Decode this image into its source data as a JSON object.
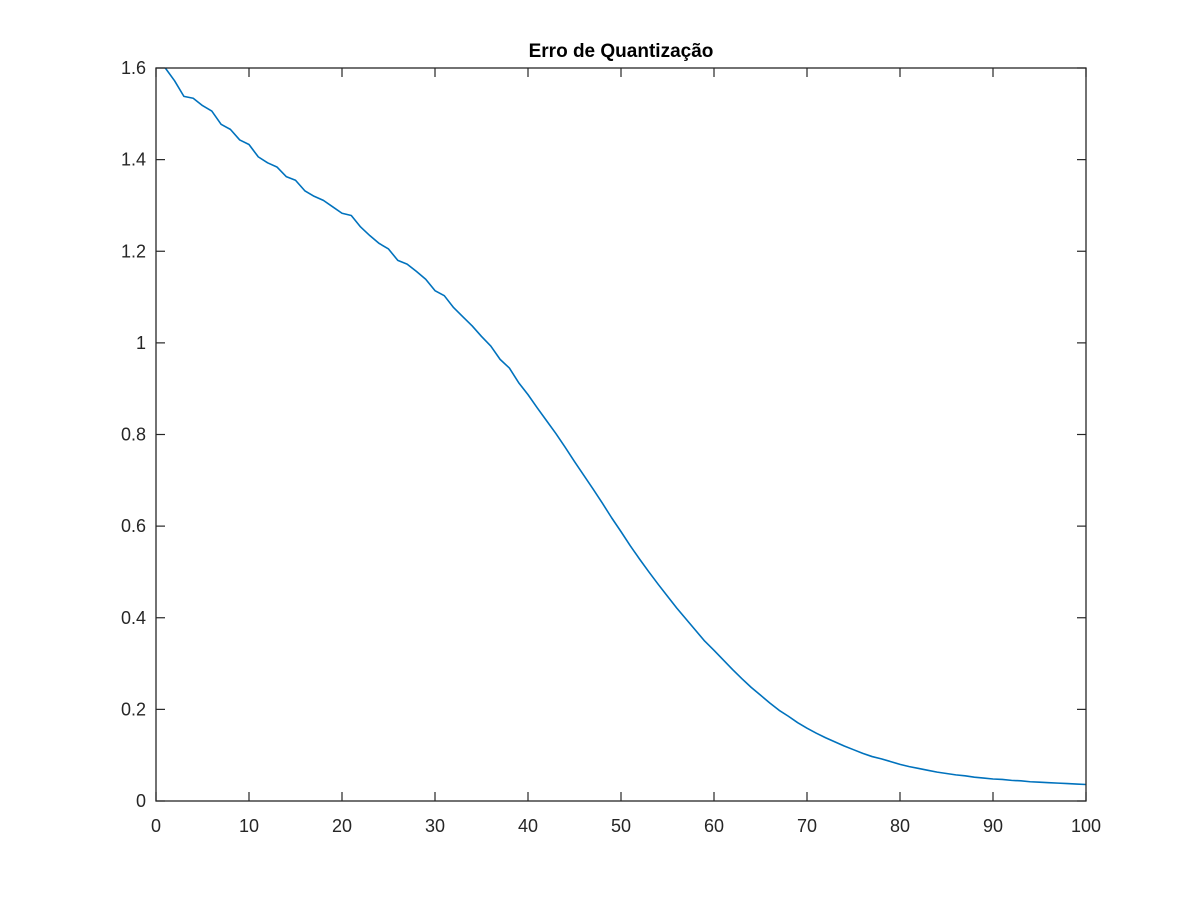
{
  "chart_data": {
    "type": "line",
    "title": "Erro de Quantização",
    "xlabel": "",
    "ylabel": "",
    "xlim": [
      0,
      100
    ],
    "ylim": [
      0,
      1.6
    ],
    "xticks": [
      0,
      10,
      20,
      30,
      40,
      50,
      60,
      70,
      80,
      90,
      100
    ],
    "yticks": [
      0,
      0.2,
      0.4,
      0.6,
      0.8,
      1,
      1.2,
      1.4,
      1.6
    ],
    "xtick_labels": [
      "0",
      "10",
      "20",
      "30",
      "40",
      "50",
      "60",
      "70",
      "80",
      "90",
      "100"
    ],
    "ytick_labels": [
      "0",
      "0.2",
      "0.4",
      "0.6",
      "0.8",
      "1",
      "1.2",
      "1.4",
      "1.6"
    ],
    "grid": false,
    "box": true,
    "series": [
      {
        "color": "#0072bd",
        "x": [
          1,
          2,
          3,
          4,
          5,
          6,
          7,
          8,
          9,
          10,
          11,
          12,
          13,
          14,
          15,
          16,
          17,
          18,
          19,
          20,
          21,
          22,
          23,
          24,
          25,
          26,
          27,
          28,
          29,
          30,
          31,
          32,
          33,
          34,
          35,
          36,
          37,
          38,
          39,
          40,
          41,
          42,
          43,
          44,
          45,
          46,
          47,
          48,
          49,
          50,
          51,
          52,
          53,
          54,
          55,
          56,
          57,
          58,
          59,
          60,
          61,
          62,
          63,
          64,
          65,
          66,
          67,
          68,
          69,
          70,
          71,
          72,
          73,
          74,
          75,
          76,
          77,
          78,
          79,
          80,
          81,
          82,
          83,
          84,
          85,
          86,
          87,
          88,
          89,
          90,
          91,
          92,
          93,
          94,
          95,
          96,
          97,
          98,
          99,
          100
        ],
        "values": [
          1.6,
          1.572,
          1.538,
          1.534,
          1.518,
          1.506,
          1.477,
          1.466,
          1.443,
          1.433,
          1.406,
          1.393,
          1.384,
          1.363,
          1.355,
          1.332,
          1.32,
          1.311,
          1.297,
          1.283,
          1.278,
          1.253,
          1.234,
          1.217,
          1.205,
          1.18,
          1.172,
          1.156,
          1.139,
          1.114,
          1.103,
          1.077,
          1.057,
          1.037,
          1.014,
          0.993,
          0.964,
          0.945,
          0.913,
          0.887,
          0.858,
          0.83,
          0.802,
          0.772,
          0.741,
          0.711,
          0.681,
          0.65,
          0.618,
          0.588,
          0.557,
          0.528,
          0.5,
          0.473,
          0.447,
          0.421,
          0.397,
          0.373,
          0.349,
          0.329,
          0.308,
          0.287,
          0.267,
          0.248,
          0.231,
          0.214,
          0.198,
          0.185,
          0.171,
          0.159,
          0.148,
          0.138,
          0.129,
          0.12,
          0.112,
          0.104,
          0.097,
          0.092,
          0.086,
          0.08,
          0.075,
          0.071,
          0.067,
          0.063,
          0.06,
          0.057,
          0.055,
          0.052,
          0.05,
          0.048,
          0.047,
          0.045,
          0.044,
          0.042,
          0.041,
          0.04,
          0.039,
          0.038,
          0.037,
          0.036
        ]
      }
    ]
  }
}
